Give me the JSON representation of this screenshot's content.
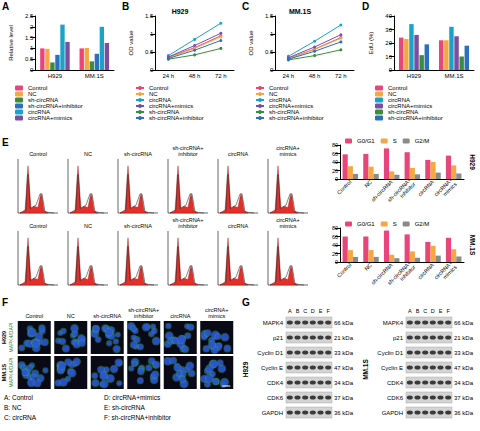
{
  "chart_data": [
    {
      "panel": "A",
      "type": "bar",
      "ylabel": "Relative level",
      "categories": [
        "H929",
        "MM.1S"
      ],
      "ylim": [
        0,
        2.5
      ],
      "yticks": [
        0,
        0.5,
        1,
        1.5,
        2,
        2.5
      ],
      "grid": false,
      "legend": "bottom",
      "series": [
        {
          "name": "Control",
          "color": "#e8457a",
          "values": [
            1.0,
            1.0
          ]
        },
        {
          "name": "NC",
          "color": "#f4a742",
          "values": [
            0.98,
            1.02
          ]
        },
        {
          "name": "sh-circRNA",
          "color": "#3a8d3a",
          "values": [
            0.35,
            0.4
          ]
        },
        {
          "name": "sh-circRNA+inhibitor",
          "color": "#2c6fbb",
          "values": [
            0.7,
            0.75
          ]
        },
        {
          "name": "circRNA",
          "color": "#1aa3c9",
          "values": [
            2.1,
            2.0
          ]
        },
        {
          "name": "circRNA+mimics",
          "color": "#7b4ea3",
          "values": [
            1.3,
            1.25
          ]
        }
      ]
    },
    {
      "panel": "B",
      "type": "line",
      "title": "H929",
      "ylabel": "OD value",
      "categories": [
        "24 h",
        "48 h",
        "72 h"
      ],
      "ylim": [
        0,
        1.5
      ],
      "yticks": [
        0,
        0.5,
        1,
        1.5
      ],
      "grid": false,
      "legend": "bottom",
      "marker": "circle",
      "series": [
        {
          "name": "Control",
          "color": "#e8457a",
          "values": [
            0.35,
            0.62,
            0.95
          ]
        },
        {
          "name": "NC",
          "color": "#f4a742",
          "values": [
            0.34,
            0.6,
            0.92
          ]
        },
        {
          "name": "circRNA",
          "color": "#1aa3c9",
          "values": [
            0.4,
            0.85,
            1.3
          ]
        },
        {
          "name": "circRNA+mimics",
          "color": "#7b4ea3",
          "values": [
            0.36,
            0.68,
            1.02
          ]
        },
        {
          "name": "sh-circRNA",
          "color": "#3a8d3a",
          "values": [
            0.3,
            0.42,
            0.6
          ]
        },
        {
          "name": "sh-circRNA+inhibitor",
          "color": "#2c6fbb",
          "values": [
            0.32,
            0.55,
            0.82
          ]
        }
      ]
    },
    {
      "panel": "C",
      "type": "line",
      "title": "MM.1S",
      "ylabel": "OD value",
      "categories": [
        "24 h",
        "48 h",
        "72 h"
      ],
      "ylim": [
        0,
        1.5
      ],
      "yticks": [
        0,
        0.5,
        1,
        1.5
      ],
      "grid": false,
      "legend": "bottom",
      "marker": "circle",
      "series": [
        {
          "name": "Control",
          "color": "#e8457a",
          "values": [
            0.32,
            0.58,
            0.9
          ]
        },
        {
          "name": "NC",
          "color": "#f4a742",
          "values": [
            0.31,
            0.57,
            0.88
          ]
        },
        {
          "name": "circRNA",
          "color": "#1aa3c9",
          "values": [
            0.38,
            0.8,
            1.25
          ]
        },
        {
          "name": "circRNA+mimics",
          "color": "#7b4ea3",
          "values": [
            0.34,
            0.64,
            0.98
          ]
        },
        {
          "name": "sh-circRNA",
          "color": "#3a8d3a",
          "values": [
            0.28,
            0.4,
            0.56
          ]
        },
        {
          "name": "sh-circRNA+inhibitor",
          "color": "#2c6fbb",
          "values": [
            0.3,
            0.52,
            0.78
          ]
        }
      ]
    },
    {
      "panel": "D",
      "type": "bar",
      "ylabel": "EdU (%)",
      "categories": [
        "H929",
        "MM.1S"
      ],
      "ylim": [
        0,
        40
      ],
      "yticks": [
        0,
        10,
        20,
        30,
        40
      ],
      "grid": false,
      "legend": "bottom",
      "series": [
        {
          "name": "Control",
          "color": "#e8457a",
          "values": [
            24,
            22
          ]
        },
        {
          "name": "NC",
          "color": "#f4a742",
          "values": [
            23,
            22
          ]
        },
        {
          "name": "circRNA",
          "color": "#1aa3c9",
          "values": [
            34,
            32
          ]
        },
        {
          "name": "circRNA+mimics",
          "color": "#7b4ea3",
          "values": [
            26,
            25
          ]
        },
        {
          "name": "sh-circRNA",
          "color": "#3a8d3a",
          "values": [
            11,
            10
          ]
        },
        {
          "name": "sh-circRNA+inhibitor",
          "color": "#2c6fbb",
          "values": [
            19,
            18
          ]
        }
      ]
    },
    {
      "type": "bar",
      "title": "H929",
      "categories": [
        "Control",
        "NC",
        "sh-circRNA",
        "sh-circRNA+inhibitor",
        "circRNA",
        "circRNA+mimics"
      ],
      "ylim": [
        0,
        80
      ],
      "yticks": [
        0,
        20,
        40,
        60,
        80
      ],
      "grid": false,
      "legend": "top",
      "series": [
        {
          "name": "G0/G1",
          "color": "#e8457a",
          "values": [
            58,
            59,
            72,
            63,
            45,
            55
          ]
        },
        {
          "name": "S",
          "color": "#f4a742",
          "values": [
            30,
            29,
            18,
            26,
            40,
            32
          ]
        },
        {
          "name": "G2/M",
          "color": "#8a8a8a",
          "values": [
            12,
            12,
            10,
            11,
            15,
            13
          ]
        }
      ]
    },
    {
      "type": "bar",
      "title": "MM.1S",
      "categories": [
        "Control",
        "NC",
        "sh-circRNA",
        "sh-circRNA+inhibitor",
        "circRNA",
        "circRNA+mimics"
      ],
      "ylim": [
        0,
        80
      ],
      "yticks": [
        0,
        20,
        40,
        60,
        80
      ],
      "grid": false,
      "legend": "top",
      "series": [
        {
          "name": "G0/G1",
          "color": "#e8457a",
          "values": [
            60,
            60,
            74,
            65,
            47,
            57
          ]
        },
        {
          "name": "S",
          "color": "#f4a742",
          "values": [
            28,
            28,
            17,
            25,
            38,
            30
          ]
        },
        {
          "name": "G2/M",
          "color": "#8a8a8a",
          "values": [
            12,
            12,
            9,
            10,
            15,
            13
          ]
        }
      ]
    }
  ],
  "flow": {
    "panel": "E",
    "groups": [
      "Control",
      "NC",
      "sh-circRNA",
      "sh-circRNA+inhibitor",
      "circRNA",
      "circRNA+mimics"
    ]
  },
  "immunofluorescence": {
    "panel": "F",
    "stain": "MAPK4/DAPI",
    "cell_lines": [
      "H929",
      "MM.1S"
    ],
    "groups": [
      "Control",
      "NC",
      "sh-circRNA",
      "sh-circRNA+inhibitor",
      "circRNA",
      "circRNA+mimics"
    ]
  },
  "key": [
    "A: Control",
    "B: NC",
    "C: circRNA",
    "D: circRNA+mimics",
    "E: sh-circRNA",
    "F: sh-circRNA+inhibitor"
  ],
  "western": {
    "panel": "G",
    "lanes": [
      "A",
      "B",
      "C",
      "D",
      "E",
      "F"
    ],
    "blots": [
      {
        "cell_line": "H929",
        "rows": [
          {
            "protein": "MAPK4",
            "size": "66 kDa"
          },
          {
            "protein": "p21",
            "size": "21 kDa"
          },
          {
            "protein": "Cyclin D1",
            "size": "33 kDa"
          },
          {
            "protein": "Cyclin E",
            "size": "47 kDa"
          },
          {
            "protein": "CDK4",
            "size": "34 kDa"
          },
          {
            "protein": "CDK6",
            "size": "37 kDa"
          },
          {
            "protein": "GAPDH",
            "size": "36 kDa"
          }
        ]
      },
      {
        "cell_line": "MM.1S",
        "rows": [
          {
            "protein": "MAPK4",
            "size": "66 kDa"
          },
          {
            "protein": "p21",
            "size": "21 kDa"
          },
          {
            "protein": "Cyclin D1",
            "size": "33 kDa"
          },
          {
            "protein": "Cyclin E",
            "size": "47 kDa"
          },
          {
            "protein": "CDK4",
            "size": "34 kDa"
          },
          {
            "protein": "CDK6",
            "size": "37 kDa"
          },
          {
            "protein": "GAPDH",
            "size": "36 kDa"
          }
        ]
      }
    ]
  }
}
